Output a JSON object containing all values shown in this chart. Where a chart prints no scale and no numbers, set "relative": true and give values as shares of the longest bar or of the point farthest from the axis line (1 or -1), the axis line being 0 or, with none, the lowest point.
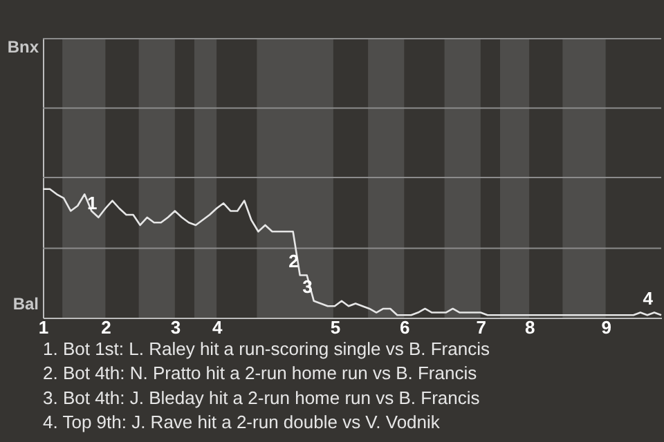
{
  "chart_data": {
    "type": "line",
    "relative": true,
    "categories": [
      "1",
      null,
      null,
      null,
      null,
      null,
      null,
      null,
      null,
      "2",
      null,
      null,
      null,
      null,
      null,
      null,
      null,
      null,
      null,
      "3",
      null,
      null,
      null,
      null,
      null,
      "4",
      null,
      null,
      null,
      null,
      null,
      null,
      null,
      null,
      null,
      null,
      null,
      null,
      null,
      null,
      null,
      null,
      "5",
      null,
      null,
      null,
      null,
      null,
      null,
      null,
      null,
      null,
      "6",
      null,
      null,
      null,
      null,
      null,
      null,
      null,
      null,
      null,
      null,
      "7",
      null,
      null,
      null,
      null,
      null,
      null,
      "8",
      null,
      null,
      null,
      null,
      null,
      null,
      null,
      null,
      null,
      null,
      "9",
      null,
      null,
      null,
      null,
      null,
      null,
      null,
      null
    ],
    "series": [
      {
        "color": "#e6e6e6",
        "values": [
          1,
          1,
          0.96,
          0.93,
          0.83,
          0.87,
          0.96,
          0.83,
          0.78,
          0.85,
          0.91,
          0.85,
          0.8,
          0.8,
          0.72,
          0.78,
          0.74,
          0.74,
          0.78,
          0.83,
          0.78,
          0.74,
          0.72,
          0.76,
          0.8,
          0.85,
          0.89,
          0.83,
          0.83,
          0.91,
          0.76,
          0.67,
          0.72,
          0.67,
          0.67,
          0.67,
          0.67,
          0.33,
          0.33,
          0.13,
          0.11,
          0.09,
          0.09,
          0.13,
          0.09,
          0.11,
          0.09,
          0.07,
          0.04,
          0.07,
          0.07,
          0.02,
          0.02,
          0.02,
          0.04,
          0.07,
          0.04,
          0.04,
          0.04,
          0.07,
          0.04,
          0.04,
          0.04,
          0.04,
          0.02,
          0.02,
          0.02,
          0.02,
          0.02,
          0.02,
          0.02,
          0.02,
          0.02,
          0.02,
          0.02,
          0.02,
          0.02,
          0.02,
          0.02,
          0.02,
          0.02,
          0.02,
          0.02,
          0.02,
          0.02,
          0.02,
          0.04,
          0.02,
          0.04,
          0.02
        ]
      }
    ],
    "ref_lines": [
      {
        "axis": "y",
        "value": 0.54,
        "color": "#8c8c8c"
      },
      {
        "axis": "y",
        "value": 1.09,
        "color": "#8c8c8c"
      },
      {
        "axis": "y",
        "value": 1.63,
        "color": "#8c8c8c"
      },
      {
        "axis": "y",
        "value": 2.17,
        "color": "#8c8c8c"
      }
    ],
    "marker": "none",
    "line_style": "solid",
    "annotations": [
      "Bnx",
      "Bal",
      {
        "text": "1",
        "y": 0.78
      },
      {
        "text": "2",
        "y": 0.33
      },
      {
        "text": "3",
        "y": 0.13
      },
      {
        "text": "4",
        "y": 0.04
      },
      "1. Bot 1st: L. Raley hit a run-scoring single vs B. Francis",
      "2. Bot 4th: N. Pratto hit a 2-run home run vs B. Francis",
      "3. Bot 4th: J. Bleday hit a 2-run home run vs B. Francis",
      "4. Top 9th: J. Rave hit a 2-run double vs V. Vodnik"
    ]
  }
}
